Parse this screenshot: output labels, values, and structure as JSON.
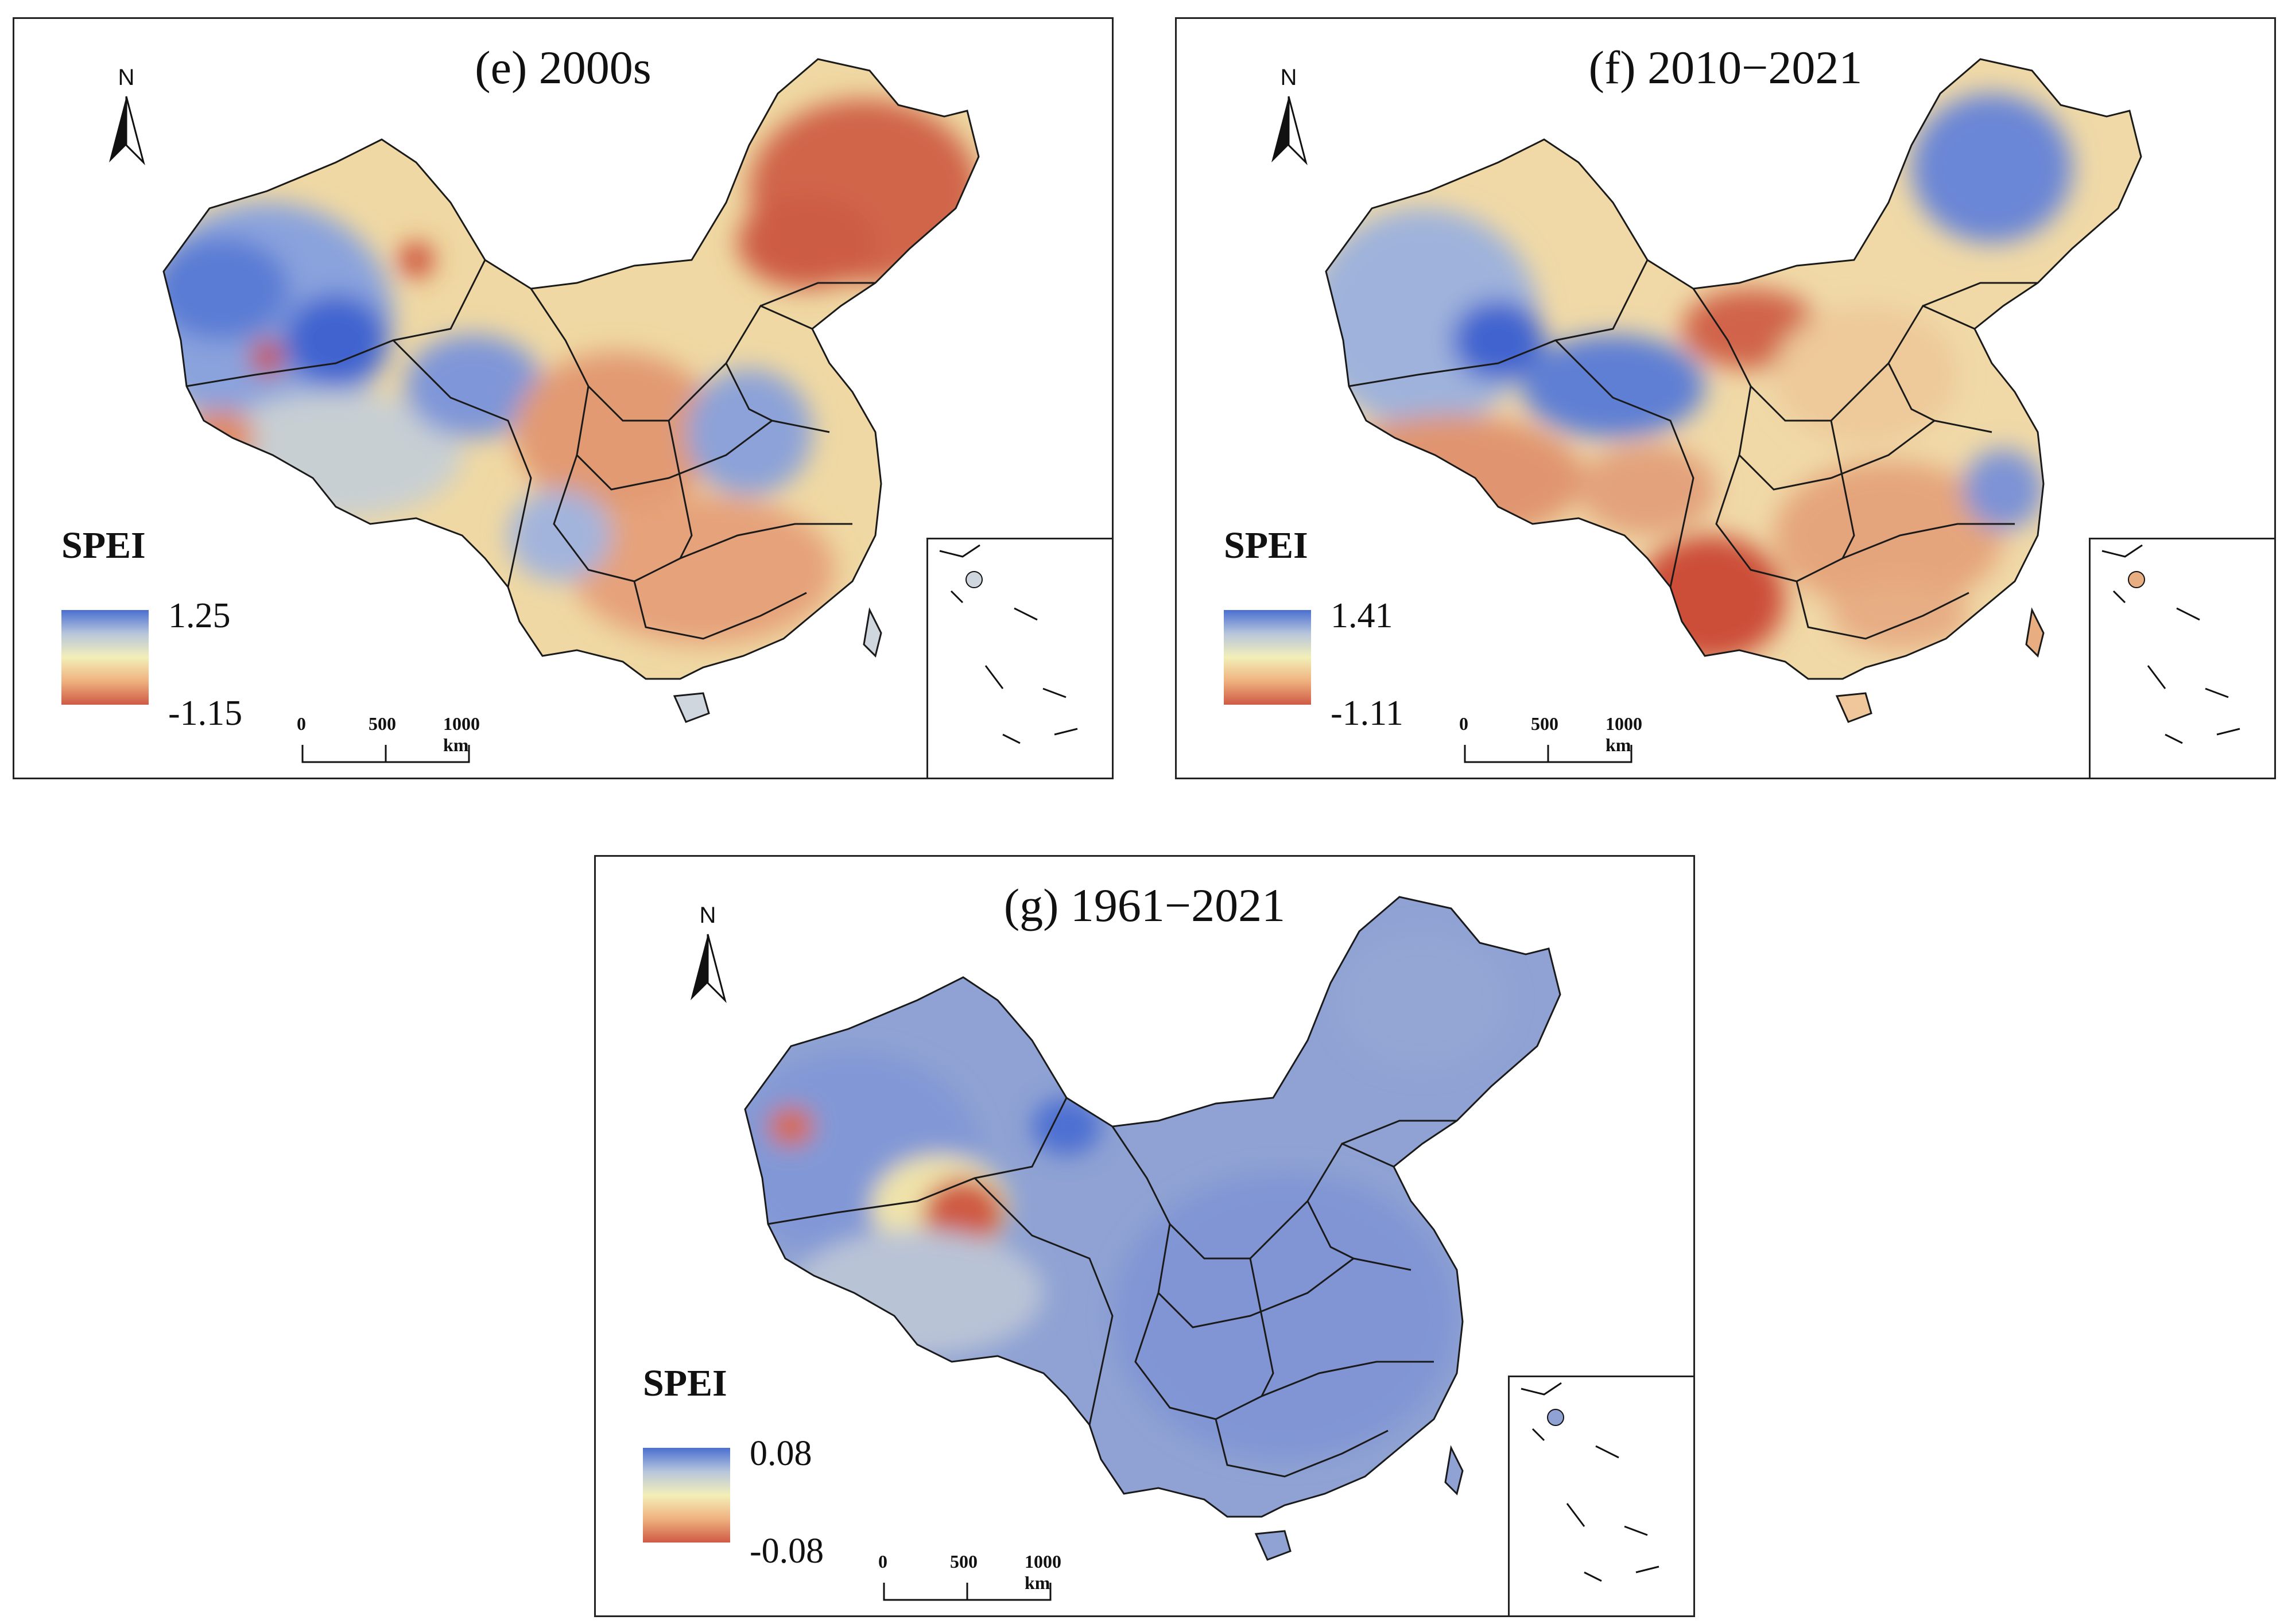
{
  "panels": [
    {
      "id": "e",
      "title": "(e) 2000s",
      "legend_title": "SPEI",
      "legend_max": "1.25",
      "legend_min": "-1.15",
      "north": "N",
      "scale_labels": [
        "0",
        "500",
        "1000 km"
      ],
      "palette": [
        "#4a6fd1",
        "#b7c6dc",
        "#f3efb8",
        "#efb27f",
        "#cf5a45"
      ]
    },
    {
      "id": "f",
      "title": "(f) 2010−2021",
      "legend_title": "SPEI",
      "legend_max": "1.41",
      "legend_min": "-1.11",
      "north": "N",
      "scale_labels": [
        "0",
        "500",
        "1000 km"
      ],
      "palette": [
        "#4a6fd1",
        "#b7c6dc",
        "#f3efb8",
        "#efb27f",
        "#cf5a45"
      ]
    },
    {
      "id": "g",
      "title": "(g) 1961−2021",
      "legend_title": "SPEI",
      "legend_max": "0.08",
      "legend_min": "-0.08",
      "north": "N",
      "scale_labels": [
        "0",
        "500",
        "1000 km"
      ],
      "palette": [
        "#4a6fd1",
        "#b7c6dc",
        "#f3efb8",
        "#efb27f",
        "#cf5a45"
      ]
    }
  ]
}
